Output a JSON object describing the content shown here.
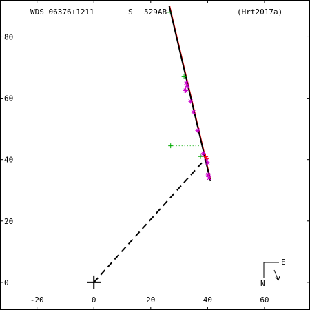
{
  "header": {
    "designation": "WDS 06376+1211",
    "discoverer_prefix": "S",
    "discoverer_code": "529AB",
    "reference": "(Hrt2017a)"
  },
  "chart_data": {
    "type": "scatter",
    "title": "",
    "xlabel": "",
    "ylabel": "",
    "xlim": [
      -33,
      76
    ],
    "ylim": [
      -9,
      92
    ],
    "x_ticks": [
      -20,
      0,
      20,
      40,
      60
    ],
    "y_ticks": [
      0,
      20,
      40,
      60,
      80
    ],
    "grid": false,
    "primary_star": [
      0,
      0
    ],
    "orbit_line": [
      [
        26.5,
        90
      ],
      [
        41,
        33
      ]
    ],
    "series": [
      {
        "marker": "plus",
        "color": "#00aa00",
        "points": [
          [
            26.5,
            88
          ],
          [
            31.7,
            67
          ],
          [
            37.5,
            41
          ],
          [
            27,
            44.5
          ]
        ]
      },
      {
        "marker": "asterisk",
        "color": "#cc00cc",
        "points": [
          [
            32.5,
            65
          ],
          [
            32.8,
            63.8
          ],
          [
            32.3,
            62.5
          ],
          [
            34,
            59
          ],
          [
            35,
            55.5
          ],
          [
            36.5,
            49.5
          ],
          [
            38.5,
            42
          ],
          [
            39.5,
            40.5
          ],
          [
            40,
            39
          ],
          [
            40.2,
            35
          ],
          [
            40.5,
            34
          ]
        ]
      },
      {
        "marker": "plus",
        "color": "#ff0000",
        "points": [
          [
            39.3,
            41
          ],
          [
            39.7,
            40.3
          ]
        ]
      }
    ],
    "residual_segments": [
      [
        [
          27,
          44.5
        ],
        [
          37.5,
          44.5
        ]
      ]
    ],
    "orbit_fit_residuals_color": "#ff0000",
    "radius_vector": [
      [
        0,
        0
      ],
      [
        38.5,
        39.5
      ]
    ],
    "compass": {
      "north": "N",
      "east": "E"
    }
  }
}
